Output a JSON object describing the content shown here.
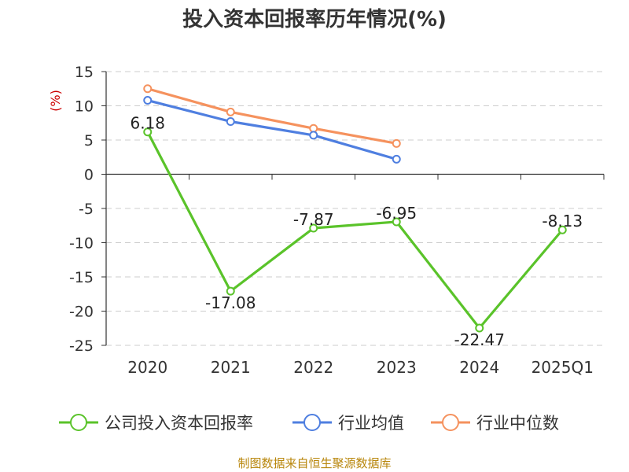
{
  "chart_data": {
    "type": "line",
    "title": "投入资本回报率历年情况(%)",
    "ylabel": "(%)",
    "xlabel": "",
    "categories": [
      "2020",
      "2021",
      "2022",
      "2023",
      "2024",
      "2025Q1"
    ],
    "ylim": [
      -25,
      15
    ],
    "yticks": [
      15,
      10,
      5,
      0,
      -5,
      -10,
      -15,
      -20,
      -25
    ],
    "grid": true,
    "legend_position": "bottom",
    "series": [
      {
        "name": "公司投入资本回报率",
        "color": "#5ac32a",
        "values": [
          6.18,
          -17.08,
          -7.87,
          -6.95,
          -22.47,
          -8.13
        ],
        "labels": [
          "6.18",
          "-17.08",
          "-7.87",
          "-6.95",
          "-22.47",
          "-8.13"
        ]
      },
      {
        "name": "行业均值",
        "color": "#4f7fe0",
        "values": [
          10.8,
          7.7,
          5.7,
          2.2,
          null,
          null
        ]
      },
      {
        "name": "行业中位数",
        "color": "#f5925e",
        "values": [
          12.5,
          9.1,
          6.7,
          4.5,
          null,
          null
        ]
      }
    ]
  },
  "source": "制图数据来自恒生聚源数据库",
  "colors": {
    "axis": "#333333",
    "grid": "#cccccc",
    "ylabel": "#cc0000",
    "source": "#b8860b"
  }
}
